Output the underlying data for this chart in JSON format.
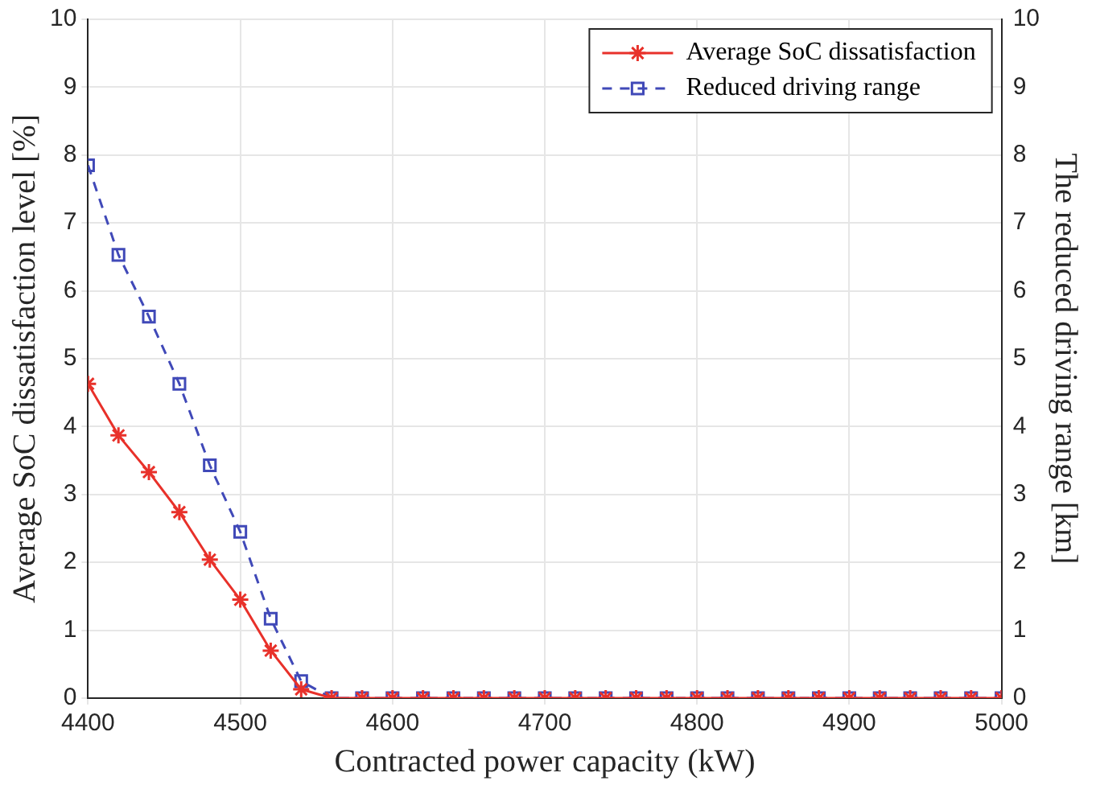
{
  "chart_data": {
    "type": "line",
    "xlabel": "Contracted power capacity (kW)",
    "ylabel": "Average SoC dissatisfaction level [%]",
    "y2label": "The reduced driving range [km]",
    "x": [
      4400,
      4420,
      4440,
      4460,
      4480,
      4500,
      4520,
      4540,
      4560,
      4580,
      4600,
      4620,
      4640,
      4660,
      4680,
      4700,
      4720,
      4740,
      4760,
      4780,
      4800,
      4820,
      4840,
      4860,
      4880,
      4900,
      4920,
      4940,
      4960,
      4980,
      5000
    ],
    "series": [
      {
        "name": "Average SoC dissatisfaction",
        "color": "#e8312a",
        "marker": "cross",
        "line_style": "solid",
        "values": [
          4.63,
          3.87,
          3.33,
          2.74,
          2.04,
          1.45,
          0.7,
          0.13,
          0,
          0,
          0,
          0,
          0,
          0,
          0,
          0,
          0,
          0,
          0,
          0,
          0,
          0,
          0,
          0,
          0,
          0,
          0,
          0,
          0,
          0,
          0
        ]
      },
      {
        "name": "Reduced driving range",
        "color": "#4049b8",
        "marker": "square",
        "line_style": "dashed",
        "axis": "y2",
        "values": [
          7.85,
          6.53,
          5.62,
          4.63,
          3.43,
          2.45,
          1.17,
          0.25,
          0,
          0,
          0,
          0,
          0,
          0,
          0,
          0,
          0,
          0,
          0,
          0,
          0,
          0,
          0,
          0,
          0,
          0,
          0,
          0,
          0,
          0,
          0
        ]
      }
    ],
    "xlim": [
      4400,
      5000
    ],
    "xticks": [
      4400,
      4500,
      4600,
      4700,
      4800,
      4900,
      5000
    ],
    "ylim": [
      0,
      10
    ],
    "yticks": [
      0,
      1,
      2,
      3,
      4,
      5,
      6,
      7,
      8,
      9,
      10
    ],
    "y2lim": [
      0,
      10
    ],
    "y2ticks": [
      0,
      1,
      2,
      3,
      4,
      5,
      6,
      7,
      8,
      9,
      10
    ],
    "grid": true,
    "legend": "top right"
  }
}
